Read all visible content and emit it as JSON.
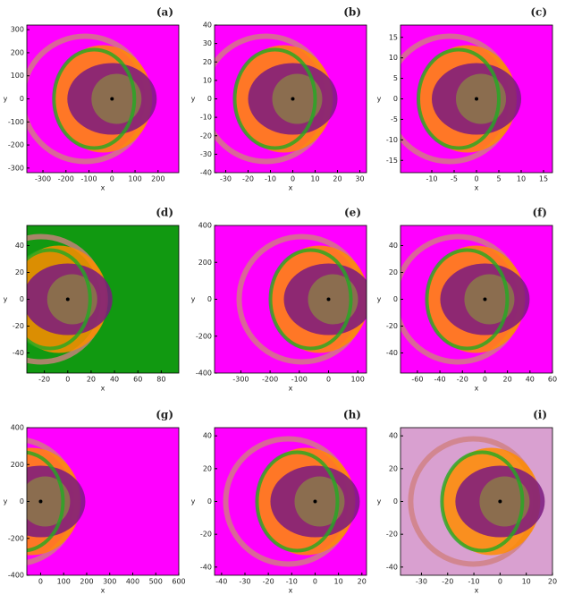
{
  "chart_data": [
    {
      "type": "basin",
      "panel": "(a)",
      "xlabel": "x",
      "ylabel": "y",
      "background": "#ff00ff",
      "xlim": [
        -370,
        290
      ],
      "ylim": [
        -320,
        320
      ],
      "xticks": [
        -300,
        -200,
        -100,
        0,
        100,
        200
      ],
      "yticks": [
        -300,
        -200,
        -100,
        0,
        100,
        200,
        300
      ]
    },
    {
      "type": "basin",
      "panel": "(b)",
      "xlabel": "x",
      "ylabel": "y",
      "background": "#ff00ff",
      "xlim": [
        -35,
        33
      ],
      "ylim": [
        -40,
        40
      ],
      "xticks": [
        -30,
        -20,
        -10,
        0,
        10,
        20,
        30
      ],
      "yticks": [
        -40,
        -30,
        -20,
        -10,
        0,
        10,
        20,
        30,
        40
      ]
    },
    {
      "type": "basin",
      "panel": "(c)",
      "xlabel": "x",
      "ylabel": "y",
      "background": "#ff00ff",
      "xlim": [
        -17,
        17
      ],
      "ylim": [
        -18,
        18
      ],
      "xticks": [
        -10,
        -5,
        0,
        5,
        10,
        15
      ],
      "yticks": [
        -15,
        -10,
        -5,
        0,
        5,
        10,
        15
      ]
    },
    {
      "type": "basin",
      "panel": "(d)",
      "xlabel": "x",
      "ylabel": "y",
      "background": "#119911",
      "xlim": [
        -35,
        95
      ],
      "ylim": [
        -55,
        55
      ],
      "xticks": [
        -20,
        0,
        20,
        40,
        60,
        80
      ],
      "yticks": [
        -40,
        -20,
        0,
        20,
        40
      ]
    },
    {
      "type": "basin",
      "panel": "(e)",
      "xlabel": "x",
      "ylabel": "y",
      "background": "#ff00ff",
      "xlim": [
        -390,
        130
      ],
      "ylim": [
        -400,
        400
      ],
      "xticks": [
        -300,
        -200,
        -100,
        0,
        100
      ],
      "yticks": [
        -400,
        -200,
        0,
        200,
        400
      ]
    },
    {
      "type": "basin",
      "panel": "(f)",
      "xlabel": "x",
      "ylabel": "y",
      "background": "#ff00ff",
      "xlim": [
        -75,
        60
      ],
      "ylim": [
        -55,
        55
      ],
      "xticks": [
        -60,
        -40,
        -20,
        0,
        20,
        40,
        60
      ],
      "yticks": [
        -40,
        -20,
        0,
        20,
        40
      ]
    },
    {
      "type": "basin",
      "panel": "(g)",
      "xlabel": "x",
      "ylabel": "y",
      "background": "#ff00ff",
      "xlim": [
        -60,
        600
      ],
      "ylim": [
        -400,
        400
      ],
      "xticks": [
        0,
        100,
        200,
        300,
        400,
        500,
        600
      ],
      "yticks": [
        -400,
        -200,
        0,
        200,
        400
      ]
    },
    {
      "type": "basin",
      "panel": "(h)",
      "xlabel": "x",
      "ylabel": "y",
      "background": "#ff00ff",
      "xlim": [
        -43,
        22
      ],
      "ylim": [
        -45,
        45
      ],
      "xticks": [
        -40,
        -30,
        -20,
        -10,
        0,
        10,
        20
      ],
      "yticks": [
        -40,
        -20,
        0,
        20,
        40
      ]
    },
    {
      "type": "basin",
      "panel": "(i)",
      "xlabel": "x",
      "ylabel": "y",
      "background": "#d9a0d0",
      "xlim": [
        -38,
        20
      ],
      "ylim": [
        -45,
        45
      ],
      "xticks": [
        -30,
        -20,
        -10,
        0,
        10,
        20
      ],
      "yticks": [
        -40,
        -20,
        0,
        20,
        40
      ]
    }
  ]
}
